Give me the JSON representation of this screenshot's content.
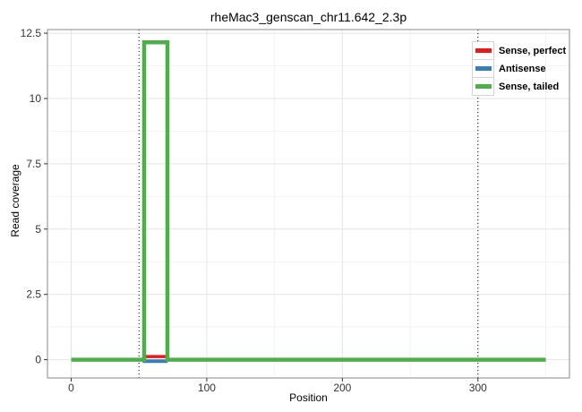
{
  "chart_data": {
    "type": "line",
    "title": "rheMac3_genscan_chr11.642_2.3p",
    "xlabel": "Position",
    "ylabel": "Read coverage",
    "xlim": [
      -17.5,
      367.5
    ],
    "ylim": [
      -0.7,
      12.64
    ],
    "x_major_ticks": [
      0,
      100,
      200,
      300
    ],
    "x_major_labels": [
      "0",
      "100",
      "200",
      "300"
    ],
    "x_minor_ticks": [
      50,
      150,
      250,
      350
    ],
    "y_major_ticks": [
      0,
      2.5,
      5,
      7.5,
      10,
      12.5
    ],
    "y_major_labels": [
      "0",
      "2.5",
      "5",
      "7.5",
      "10",
      "12.5"
    ],
    "y_minor_ticks": [
      1.25,
      3.75,
      6.25,
      8.75,
      11.25
    ],
    "grid": true,
    "legend_position": "top-right-inside",
    "vlines": [
      {
        "x": 50,
        "style": "dotted",
        "color": "#000000"
      },
      {
        "x": 300,
        "style": "dotted",
        "color": "#000000"
      }
    ],
    "series": [
      {
        "name": "Sense, perfect",
        "color": "#e41a1c",
        "line_width": 3.5,
        "points": [
          [
            53,
            0.12
          ],
          [
            70,
            0.12
          ]
        ]
      },
      {
        "name": "Antisense",
        "color": "#377eb8",
        "line_width": 4,
        "points": [
          [
            52.7,
            -0.06
          ],
          [
            71.2,
            -0.06
          ]
        ]
      },
      {
        "name": "Sense, tailed",
        "color": "#4daf4a",
        "line_width": 4.5,
        "points": [
          [
            0,
            0
          ],
          [
            53.8,
            0
          ],
          [
            53.8,
            12.15
          ],
          [
            71,
            12.15
          ],
          [
            71,
            0
          ],
          [
            350,
            0
          ]
        ]
      }
    ]
  },
  "style": {
    "grid_major_color": "#e4e4e4",
    "grid_minor_color": "#f2f2f2",
    "panel_border_color": "#898989",
    "tick_color": "#333333",
    "tick_label_color": "#333333",
    "vline_dash": "1 3",
    "legend_key_border": "#d4d4d4"
  }
}
